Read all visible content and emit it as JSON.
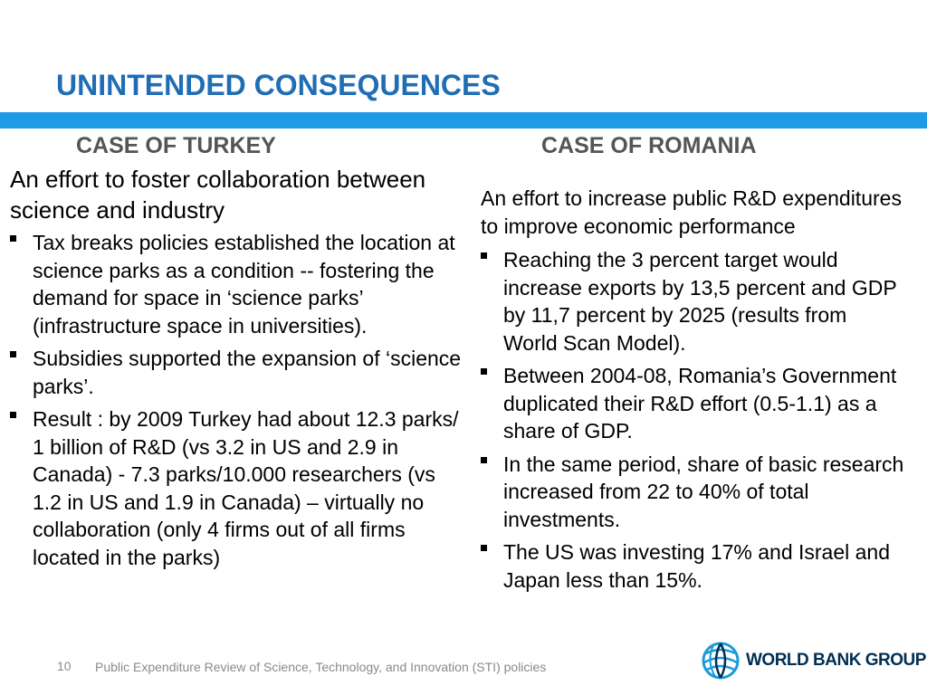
{
  "slide": {
    "title": "UNINTENDED CONSEQUENCES",
    "accent_color": "#1e9be6",
    "title_color": "#1f6eb5"
  },
  "left": {
    "heading": "CASE OF TURKEY",
    "intro": "An effort to foster collaboration between science and industry",
    "bullets": [
      "Tax breaks policies established the location at science parks as a condition -- fostering the demand for space in ‘science parks’ (infrastructure space in universities).",
      "Subsidies supported the expansion of ‘science parks’.",
      "Result : by 2009 Turkey had about 12.3 parks/ 1 billion of R&D (vs 3.2 in US and 2.9 in Canada) - 7.3 parks/10.000 researchers (vs  1.2 in US and 1.9 in Canada) – virtually no collaboration (only 4 firms out of all firms located in the parks)"
    ]
  },
  "right": {
    "heading": "CASE OF ROMANIA",
    "intro": "An effort to increase public R&D expenditures to improve economic performance",
    "bullets": [
      "Reaching the 3 percent target would increase exports by 13,5 percent and GDP by 11,7 percent by 2025 (results from World Scan Model).",
      "Between 2004-08, Romania’s Government duplicated their R&D effort (0.5-1.1) as a share of GDP.",
      "In the same period, share of basic research increased from 22 to 40% of total investments.",
      "The US was investing 17% and Israel and Japan less than 15%."
    ]
  },
  "footer": {
    "page_number": "10",
    "text": "Public Expenditure Review of Science, Technology, and Innovation (STI) policies",
    "logo_text": "WORLD BANK GROUP",
    "logo_icon": "world-bank-globe-icon"
  }
}
